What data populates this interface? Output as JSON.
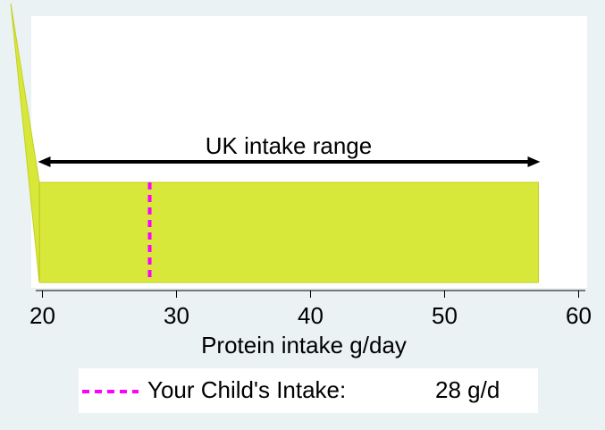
{
  "chart_data": {
    "type": "range",
    "xlabel": "Protein intake g/day",
    "xlim": [
      19.5,
      60.5
    ],
    "xticks": [
      20,
      30,
      40,
      50,
      60
    ],
    "range": [
      19.8,
      57
    ],
    "range_label": "UK intake range",
    "range_color": "#d7e83b",
    "intake": 28,
    "intake_name": "Your Child's Intake:",
    "intake_label": "28 g/d",
    "intake_color": "#ff00ff",
    "grid": false
  }
}
